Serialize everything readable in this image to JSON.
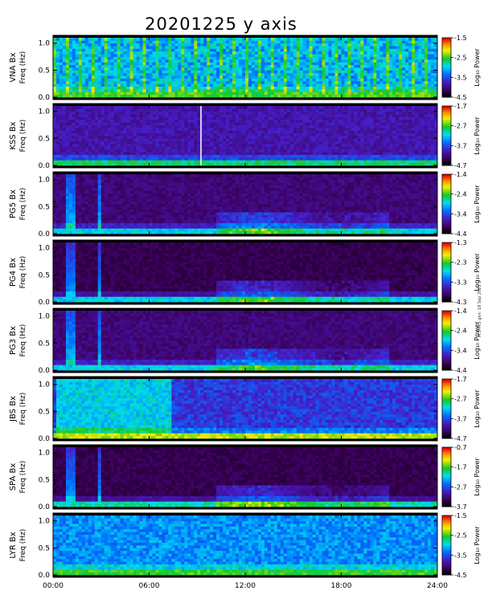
{
  "title": "20201225 y axis",
  "credit": "Pc3-Pc5 gen: 18 Sep 2021",
  "colors": {
    "background": "#000000",
    "frame": "#000000"
  },
  "chart_data": {
    "type": "heatmap",
    "x_ticks": [
      "00:00",
      "06:00",
      "12:00",
      "18:00",
      "24:00"
    ],
    "xlim_hours": [
      0,
      24
    ],
    "y_ticks": [
      "0.0",
      "0.5",
      "1.0"
    ],
    "ylim_hz": [
      0,
      1.1
    ],
    "colorbar_label": "Log₁₀ Power",
    "panels": [
      {
        "station": "VNA Bx",
        "ylabel": "Freq (Hz)",
        "cbar_ticks": [
          "-1.5",
          "-2.5",
          "-3.5",
          "-4.5"
        ],
        "cbar_range": [
          -4.5,
          -1.5
        ]
      },
      {
        "station": "KSS Bx",
        "ylabel": "Freq (Hz)",
        "cbar_ticks": [
          "-1.7",
          "-2.7",
          "-3.7",
          "-4.7"
        ],
        "cbar_range": [
          -4.7,
          -1.7
        ]
      },
      {
        "station": "PG5 Bx",
        "ylabel": "Freq (Hz)",
        "cbar_ticks": [
          "-1.4",
          "-2.4",
          "-3.4",
          "-4.4"
        ],
        "cbar_range": [
          -4.4,
          -1.4
        ]
      },
      {
        "station": "PG4 Bx",
        "ylabel": "Freq (Hz)",
        "cbar_ticks": [
          "-1.3",
          "-2.3",
          "-3.3",
          "-4.3"
        ],
        "cbar_range": [
          -4.3,
          -1.3
        ]
      },
      {
        "station": "PG3 Bx",
        "ylabel": "Freq (Hz)",
        "cbar_ticks": [
          "-1.4",
          "-2.4",
          "-3.4",
          "-4.4"
        ],
        "cbar_range": [
          -4.4,
          -1.4
        ]
      },
      {
        "station": "JBS Bx",
        "ylabel": "Freq (Hz)",
        "cbar_ticks": [
          "-1.7",
          "-2.7",
          "-3.7",
          "-4.7"
        ],
        "cbar_range": [
          -4.7,
          -1.7
        ]
      },
      {
        "station": "SPA Bx",
        "ylabel": "Freq (Hz)",
        "cbar_ticks": [
          "-0.7",
          "-1.7",
          "-2.7",
          "-3.7"
        ],
        "cbar_range": [
          -3.7,
          -0.7
        ]
      },
      {
        "station": "LYR Bx",
        "ylabel": "Freq (Hz)",
        "cbar_ticks": [
          "-1.5",
          "-2.5",
          "-3.5",
          "-4.5"
        ],
        "cbar_range": [
          -4.5,
          -1.5
        ]
      }
    ]
  }
}
